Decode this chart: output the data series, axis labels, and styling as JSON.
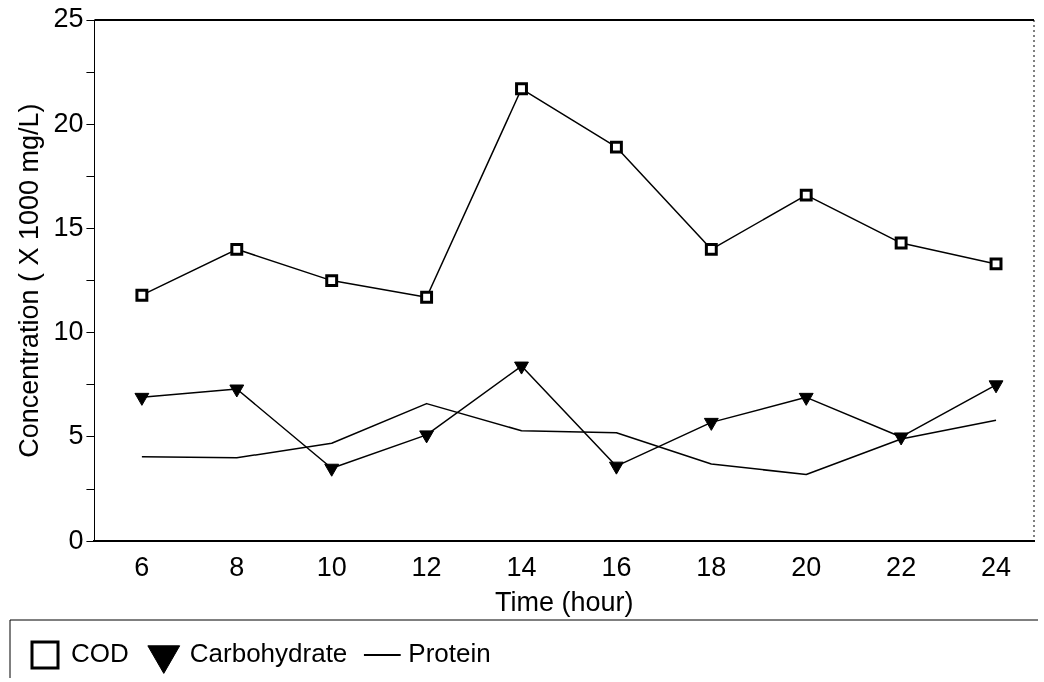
{
  "chart_data": {
    "type": "line",
    "xlabel": "Time (hour)",
    "ylabel": "Concentration ( X 1000 mg/L)",
    "x": [
      6,
      8,
      10,
      12,
      14,
      16,
      18,
      20,
      22,
      24
    ],
    "xlim": [
      5,
      24.8
    ],
    "xticks": [
      6,
      8,
      10,
      12,
      14,
      16,
      18,
      20,
      22,
      24
    ],
    "ylim": [
      0,
      25
    ],
    "yticks": [
      0,
      {
        "value": 2.5,
        "label": null
      },
      5,
      {
        "value": 7.5,
        "label": null
      },
      10,
      {
        "value": 12.5,
        "label": null
      },
      15,
      {
        "value": 17.5,
        "label": null
      },
      20,
      {
        "value": 22.5,
        "label": null
      },
      25
    ],
    "grid": false,
    "legend": "bottom",
    "line_style": "solid",
    "series": [
      {
        "name": "COD",
        "color": "#000000",
        "marker": "square",
        "values": [
          11.8,
          14.0,
          12.5,
          11.7,
          21.7,
          18.9,
          14.0,
          16.6,
          14.3,
          13.3
        ]
      },
      {
        "name": "Carbohydrate",
        "color": "#000000",
        "marker": "triangle",
        "values": [
          6.9,
          7.3,
          3.5,
          5.1,
          8.4,
          3.6,
          5.7,
          6.9,
          5.0,
          7.5
        ]
      },
      {
        "name": "Protein",
        "color": "#000000",
        "marker": "none",
        "values": [
          4.05,
          4.0,
          4.7,
          6.6,
          5.3,
          5.2,
          3.7,
          3.2,
          4.9,
          5.8
        ]
      }
    ]
  }
}
